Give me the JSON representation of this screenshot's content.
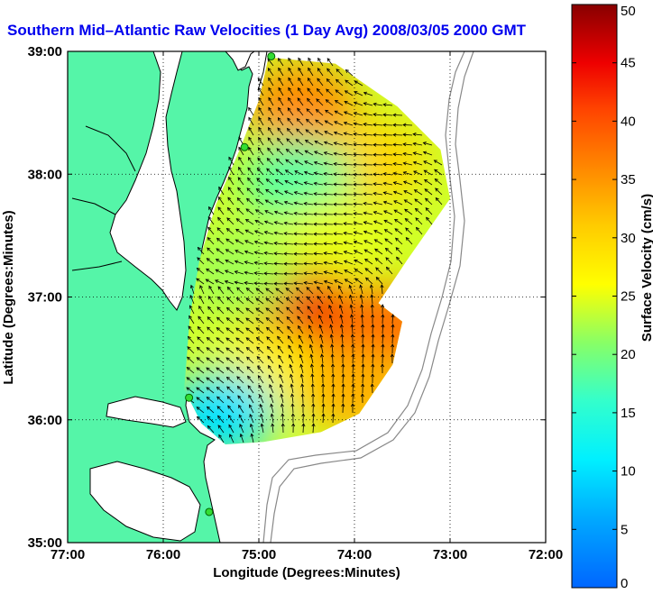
{
  "chart_data": {
    "type": "heatmap",
    "title": "Southern Mid–Atlantic Raw Velocities (1 Day Avg) 2008/03/05 2000 GMT",
    "xlabel": "Longitude (Degrees:Minutes)",
    "ylabel": "Latitude (Degrees:Minutes)",
    "xlim": [
      -77,
      -72
    ],
    "ylim": [
      35,
      39
    ],
    "x_ticks": [
      {
        "value": -77,
        "label": "77:00"
      },
      {
        "value": -76,
        "label": "76:00"
      },
      {
        "value": -75,
        "label": "75:00"
      },
      {
        "value": -74,
        "label": "74:00"
      },
      {
        "value": -73,
        "label": "73:00"
      },
      {
        "value": -72,
        "label": "72:00"
      }
    ],
    "y_ticks": [
      {
        "value": 35,
        "label": "35:00"
      },
      {
        "value": 36,
        "label": "36:00"
      },
      {
        "value": 37,
        "label": "37:00"
      },
      {
        "value": 38,
        "label": "38:00"
      },
      {
        "value": 39,
        "label": "39:00"
      }
    ],
    "grid": true,
    "colorbar": {
      "label": "Surface Velocity (cm/s)",
      "range": [
        0,
        50
      ],
      "ticks": [
        0,
        5,
        10,
        15,
        20,
        25,
        30,
        35,
        40,
        45,
        50
      ],
      "placement": "right"
    },
    "stations": [
      {
        "lon": -74.87,
        "lat": 38.96
      },
      {
        "lon": -75.15,
        "lat": 38.22
      },
      {
        "lon": -75.73,
        "lat": 36.18
      },
      {
        "lon": -75.52,
        "lat": 35.25
      }
    ],
    "velocity_regions": [
      {
        "lon": -74.55,
        "lat": 38.55,
        "speed": 36
      },
      {
        "lon": -73.8,
        "lat": 38.1,
        "speed": 30
      },
      {
        "lon": -74.6,
        "lat": 37.95,
        "speed": 18
      },
      {
        "lon": -74.2,
        "lat": 37.45,
        "speed": 25
      },
      {
        "lon": -74.5,
        "lat": 36.85,
        "speed": 45
      },
      {
        "lon": -73.7,
        "lat": 36.75,
        "speed": 38
      },
      {
        "lon": -74.9,
        "lat": 36.4,
        "speed": 27
      },
      {
        "lon": -74.0,
        "lat": 36.25,
        "speed": 33
      },
      {
        "lon": -75.4,
        "lat": 36.05,
        "speed": 10
      },
      {
        "lon": -75.2,
        "lat": 37.2,
        "speed": 22
      }
    ]
  }
}
